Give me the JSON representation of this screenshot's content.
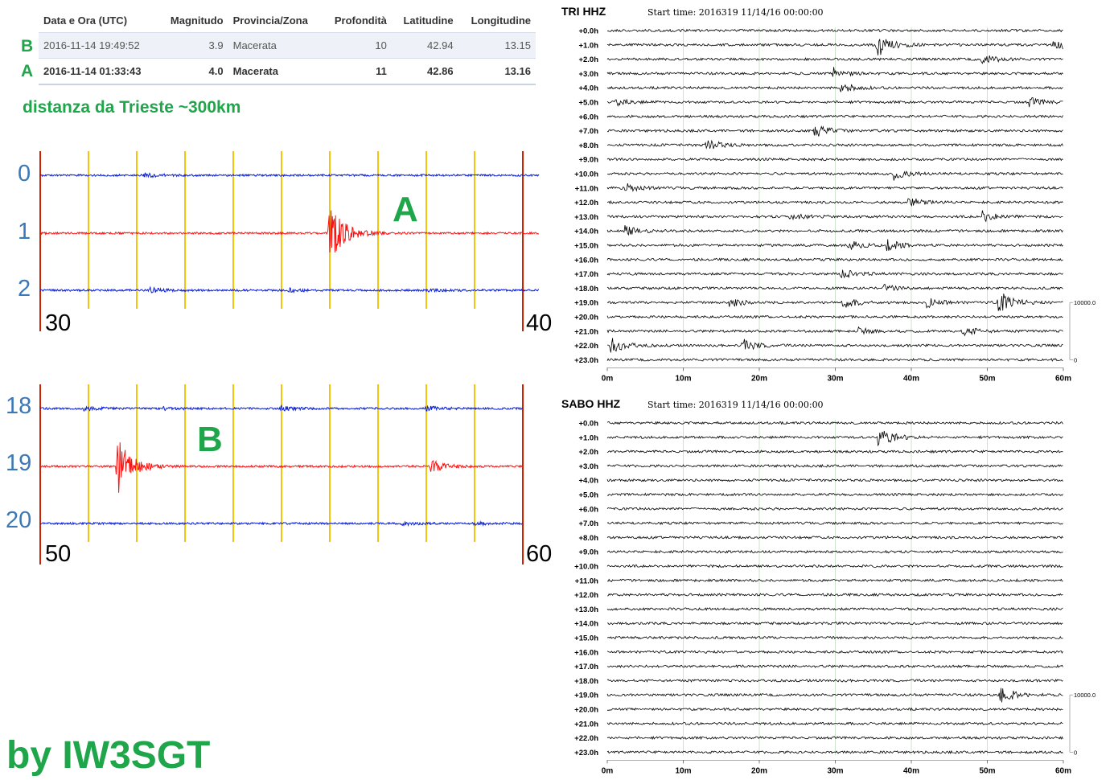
{
  "table": {
    "columns": [
      "Data e Ora (UTC)",
      "Magnitudo",
      "Provincia/Zona",
      "Profondità",
      "Latitudine",
      "Longitudine"
    ],
    "rows": [
      {
        "marker": "B",
        "datetime": "2016-11-14 19:49:52",
        "magnitude": "3.9",
        "zone": "Macerata",
        "depth": "10",
        "lat": "42.94",
        "lon": "13.15"
      },
      {
        "marker": "A",
        "datetime": "2016-11-14 01:33:43",
        "magnitude": "4.0",
        "zone": "Macerata",
        "depth": "11",
        "lat": "42.86",
        "lon": "13.16"
      }
    ]
  },
  "note": "distanza da Trieste ~300km",
  "signature": "by IW3SGT",
  "colors": {
    "accent_green": "#1fa64a",
    "trace_blue": "#0a1fd6",
    "trace_red": "#ff1010",
    "gridline_yellow": "#f2c40f",
    "frame_red": "#cc2200",
    "label_blue": "#3b78b8"
  },
  "chart_data": [
    {
      "type": "line",
      "id": "zoom-a",
      "marker": "A",
      "row_labels": [
        "0",
        "1",
        "2"
      ],
      "x_start_label": "30",
      "x_end_label": "40",
      "xlim": [
        30,
        40
      ],
      "series": [
        {
          "row": "0",
          "color": "blue",
          "events": [
            {
              "minute": 32.1,
              "amp": 0.25
            }
          ]
        },
        {
          "row": "1",
          "color": "red",
          "events": [
            {
              "minute": 35.8,
              "amp": 1.0
            }
          ]
        },
        {
          "row": "2",
          "color": "blue",
          "events": [
            {
              "minute": 32.2,
              "amp": 0.3
            },
            {
              "minute": 35.0,
              "amp": 0.2
            },
            {
              "minute": 37.8,
              "amp": 0.15
            }
          ]
        }
      ]
    },
    {
      "type": "line",
      "id": "zoom-b",
      "marker": "B",
      "row_labels": [
        "18",
        "19",
        "20"
      ],
      "x_start_label": "50",
      "x_end_label": "60",
      "xlim": [
        50,
        60
      ],
      "series": [
        {
          "row": "18",
          "color": "blue",
          "events": [
            {
              "minute": 50.9,
              "amp": 0.25
            },
            {
              "minute": 52.5,
              "amp": 0.2
            },
            {
              "minute": 55.0,
              "amp": 0.25
            },
            {
              "minute": 58.0,
              "amp": 0.3
            }
          ]
        },
        {
          "row": "19",
          "color": "red",
          "events": [
            {
              "minute": 51.6,
              "amp": 1.0
            },
            {
              "minute": 58.1,
              "amp": 0.2
            }
          ]
        },
        {
          "row": "20",
          "color": "blue",
          "events": [
            {
              "minute": 57.5,
              "amp": 0.25
            },
            {
              "minute": 59.0,
              "amp": 0.15
            }
          ]
        }
      ]
    },
    {
      "type": "line",
      "id": "drum-tri",
      "station": "TRI HHZ",
      "start_time": "Start time: 2016319 11/14/16 00:00:00",
      "rows": [
        "+0.0h",
        "+1.0h",
        "+2.0h",
        "+3.0h",
        "+4.0h",
        "+5.0h",
        "+6.0h",
        "+7.0h",
        "+8.0h",
        "+9.0h",
        "+10.0h",
        "+11.0h",
        "+12.0h",
        "+13.0h",
        "+14.0h",
        "+15.0h",
        "+16.0h",
        "+17.0h",
        "+18.0h",
        "+19.0h",
        "+20.0h",
        "+21.0h",
        "+22.0h",
        "+23.0h"
      ],
      "x_ticks": [
        "0m",
        "10m",
        "20m",
        "30m",
        "40m",
        "50m",
        "60m"
      ],
      "xlim": [
        0,
        60
      ],
      "scale_top": "10000.0",
      "scale_bottom": "0",
      "events": [
        {
          "hour": 1,
          "minute": 35.5,
          "amp": 1.0
        },
        {
          "hour": 1,
          "minute": 58.8,
          "amp": 0.5
        },
        {
          "hour": 2,
          "minute": 49.3,
          "amp": 0.4
        },
        {
          "hour": 3,
          "minute": 29.8,
          "amp": 0.45
        },
        {
          "hour": 4,
          "minute": 30.8,
          "amp": 0.45
        },
        {
          "hour": 5,
          "minute": 1.1,
          "amp": 0.3
        },
        {
          "hour": 5,
          "minute": 55.5,
          "amp": 0.35
        },
        {
          "hour": 7,
          "minute": 27.3,
          "amp": 0.5
        },
        {
          "hour": 8,
          "minute": 13.0,
          "amp": 0.45
        },
        {
          "hour": 10,
          "minute": 37.7,
          "amp": 0.45
        },
        {
          "hour": 11,
          "minute": 2.0,
          "amp": 0.4
        },
        {
          "hour": 12,
          "minute": 39.6,
          "amp": 0.4
        },
        {
          "hour": 13,
          "minute": 24.0,
          "amp": 0.3
        },
        {
          "hour": 13,
          "minute": 49.3,
          "amp": 0.45
        },
        {
          "hour": 14,
          "minute": 2.2,
          "amp": 0.45
        },
        {
          "hour": 15,
          "minute": 31.8,
          "amp": 0.35
        },
        {
          "hour": 15,
          "minute": 36.8,
          "amp": 0.4
        },
        {
          "hour": 17,
          "minute": 30.8,
          "amp": 0.4
        },
        {
          "hour": 18,
          "minute": 36.3,
          "amp": 0.25
        },
        {
          "hour": 19,
          "minute": 16.0,
          "amp": 0.4
        },
        {
          "hour": 19,
          "minute": 31.0,
          "amp": 0.45
        },
        {
          "hour": 19,
          "minute": 42.0,
          "amp": 0.4
        },
        {
          "hour": 19,
          "minute": 51.5,
          "amp": 0.9
        },
        {
          "hour": 21,
          "minute": 33.0,
          "amp": 0.25
        },
        {
          "hour": 21,
          "minute": 46.8,
          "amp": 0.4
        },
        {
          "hour": 22,
          "minute": 0.5,
          "amp": 0.6
        },
        {
          "hour": 22,
          "minute": 17.8,
          "amp": 0.5
        }
      ]
    },
    {
      "type": "line",
      "id": "drum-sabo",
      "station": "SABO HHZ",
      "start_time": "Start time: 2016319 11/14/16 00:00:00",
      "rows": [
        "+0.0h",
        "+1.0h",
        "+2.0h",
        "+3.0h",
        "+4.0h",
        "+5.0h",
        "+6.0h",
        "+7.0h",
        "+8.0h",
        "+9.0h",
        "+10.0h",
        "+11.0h",
        "+12.0h",
        "+13.0h",
        "+14.0h",
        "+15.0h",
        "+16.0h",
        "+17.0h",
        "+18.0h",
        "+19.0h",
        "+20.0h",
        "+21.0h",
        "+22.0h",
        "+23.0h"
      ],
      "x_ticks": [
        "0m",
        "10m",
        "20m",
        "30m",
        "40m",
        "50m",
        "60m"
      ],
      "xlim": [
        0,
        60
      ],
      "scale_top": "10000.0",
      "scale_bottom": "0",
      "events": [
        {
          "hour": 1,
          "minute": 35.7,
          "amp": 0.9
        },
        {
          "hour": 19,
          "minute": 51.7,
          "amp": 0.7
        }
      ]
    }
  ]
}
